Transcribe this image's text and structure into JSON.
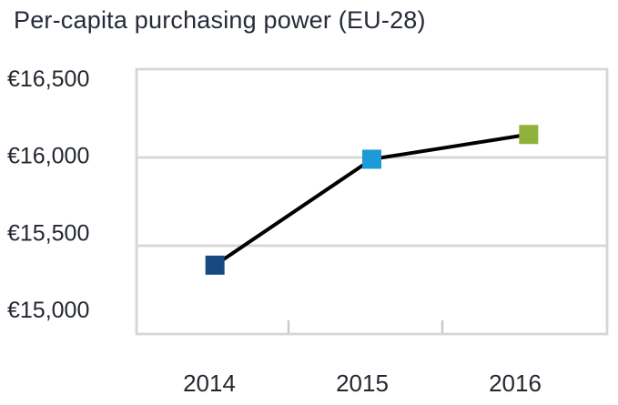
{
  "title": "Per-capita purchasing power (EU-28)",
  "chart_data": {
    "type": "line",
    "title": "Per-capita purchasing power (EU-28)",
    "categories": [
      "2014",
      "2015",
      "2016"
    ],
    "values": [
      15390,
      15990,
      16130
    ],
    "xlabel": "",
    "ylabel": "",
    "ylim": [
      15000,
      16500
    ],
    "ytick_step": 500,
    "ytick_labels": [
      "€15,000",
      "€15,500",
      "€16,000",
      "€16,500"
    ],
    "grid": "horizontal-only",
    "legend_position": "none",
    "line_color": "#000000",
    "marker_shape": "square",
    "marker_colors": [
      "#174a7e",
      "#1e9bd7",
      "#91b23a"
    ]
  },
  "colors": {
    "grid": "#d6d6d6",
    "tick": "#c9c9c9",
    "text": "#23272f",
    "title_text": "#262b38",
    "background": "#ffffff"
  }
}
